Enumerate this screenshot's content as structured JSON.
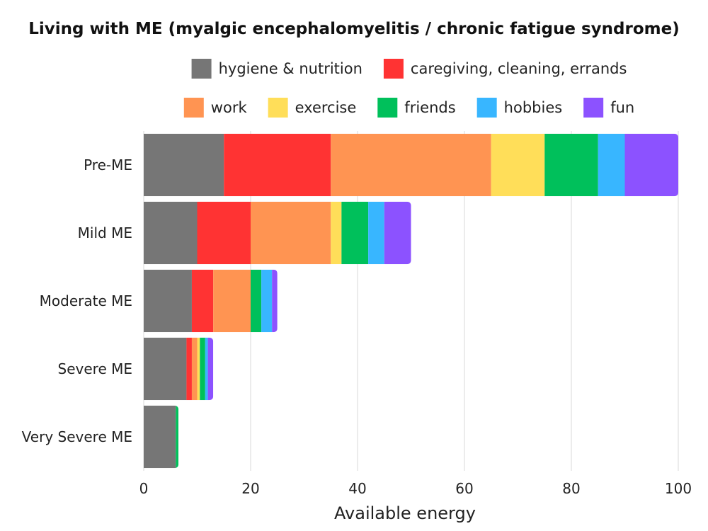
{
  "chart_data": {
    "type": "bar",
    "orientation": "horizontal",
    "stacked": true,
    "title": "Living with ME (myalgic encephalomyelitis / chronic fatigue syndrome)",
    "xlabel": "Available energy",
    "ylabel": "",
    "xlim": [
      0,
      100
    ],
    "x_ticks": [
      0,
      20,
      40,
      60,
      80,
      100
    ],
    "grid": "vertical",
    "legend_position": "top",
    "categories": [
      "Pre-ME",
      "Mild ME",
      "Moderate ME",
      "Severe ME",
      "Very Severe ME"
    ],
    "series": [
      {
        "name": "hygiene & nutrition",
        "color": "#767676",
        "values": [
          15,
          10,
          9,
          8,
          6
        ]
      },
      {
        "name": "caregiving, cleaning, errands",
        "color": "#ff3333",
        "values": [
          20,
          10,
          4,
          1,
          0
        ]
      },
      {
        "name": "work",
        "color": "#ff9452",
        "values": [
          30,
          15,
          7,
          1,
          0
        ]
      },
      {
        "name": "exercise",
        "color": "#ffde59",
        "values": [
          10,
          2,
          0,
          0.5,
          0
        ]
      },
      {
        "name": "friends",
        "color": "#00c05b",
        "values": [
          10,
          5,
          2,
          1,
          0.5
        ]
      },
      {
        "name": "hobbies",
        "color": "#38b6ff",
        "values": [
          5,
          3,
          2,
          0.5,
          0
        ]
      },
      {
        "name": "fun",
        "color": "#8c52ff",
        "values": [
          10,
          5,
          1,
          1,
          0
        ]
      }
    ]
  }
}
